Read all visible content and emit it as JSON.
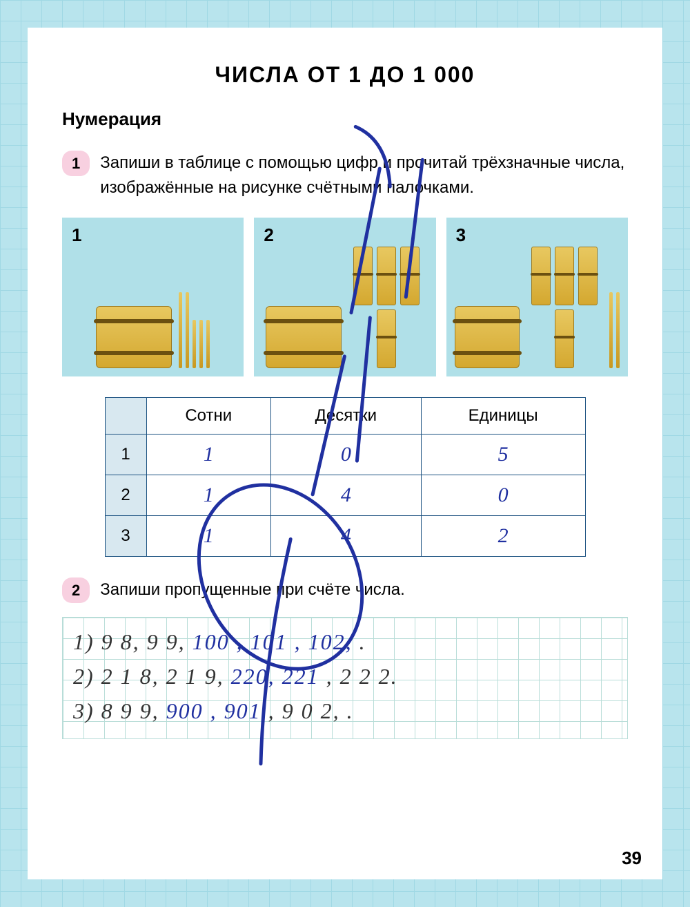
{
  "title": "ЧИСЛА  ОТ  1  ДО  1 000",
  "subtitle": "Нумерация",
  "page_number": "39",
  "task1": {
    "num": "1",
    "text": "Запиши в таблице с помощью цифр и прочитай трёхзначные числа, изображённые на рисунке счётными палочками.",
    "boxes": [
      {
        "label": "1",
        "hundreds": 1,
        "tens": 0,
        "ones_tall": 2,
        "ones_short": 3
      },
      {
        "label": "2",
        "hundreds": 1,
        "tens": 4,
        "ones_tall": 0,
        "ones_short": 0
      },
      {
        "label": "3",
        "hundreds": 1,
        "tens": 4,
        "ones_tall": 2,
        "ones_short": 0
      }
    ],
    "table": {
      "headers": [
        "",
        "Сотни",
        "Десятки",
        "Единицы"
      ],
      "rows": [
        {
          "n": "1",
          "h": "1",
          "t": "0",
          "u": "5"
        },
        {
          "n": "2",
          "h": "1",
          "t": "4",
          "u": "0"
        },
        {
          "n": "3",
          "h": "1",
          "t": "4",
          "u": "2"
        }
      ]
    }
  },
  "task2": {
    "num": "2",
    "text": "Запиши пропущенные при счёте числа.",
    "lines": [
      {
        "pre": "1)  9 8,  9 9, ",
        "hw": "100 ,  101 ,  102,",
        "post": "        ."
      },
      {
        "pre": "2)  2 1 8,  2 1 9, ",
        "hw": "220,  221",
        "post": " ,  2 2 2."
      },
      {
        "pre": "3)  8 9 9, ",
        "hw": "900 ,  901",
        "post": " ,  9 0 2,          ."
      }
    ]
  },
  "colors": {
    "page_bg": "#ffffff",
    "grid_bg": "#b8e4ed",
    "box_bg": "#b0e0e8",
    "badge_bg": "#f8d0e0",
    "table_border": "#1a5080",
    "table_shade": "#d8e8f0",
    "handwriting": "#2030a0",
    "stick_fill": "#e8c860"
  }
}
